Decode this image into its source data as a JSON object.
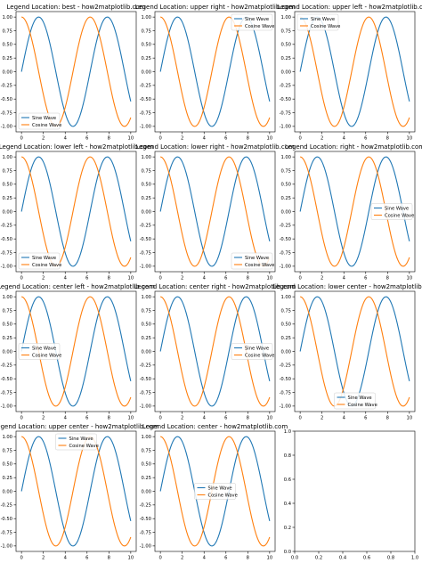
{
  "figure": {
    "background": "#ffffff"
  },
  "series_colors": {
    "Sine Wave": "#1f77b4",
    "Cosine Wave": "#ff7f0e"
  },
  "chart_data": [
    {
      "type": "line",
      "title": "Legend Location: best - how2matplotlib.com",
      "legend_loc": "lower left",
      "xlim": [
        -0.5,
        10.5
      ],
      "ylim": [
        -1.1,
        1.1
      ],
      "xticks": [
        0,
        2,
        4,
        6,
        8,
        10
      ],
      "yticks": [
        1.0,
        0.75,
        0.5,
        0.25,
        0.0,
        -0.25,
        -0.5,
        -0.75,
        -1.0
      ],
      "series": [
        {
          "name": "Sine Wave",
          "function": "sin",
          "color": "#1f77b4"
        },
        {
          "name": "Cosine Wave",
          "function": "cos",
          "color": "#ff7f0e"
        }
      ]
    },
    {
      "type": "line",
      "title": "Legend Location: upper right - how2matplotlib.com",
      "legend_loc": "upper right",
      "xlim": [
        -0.5,
        10.5
      ],
      "ylim": [
        -1.1,
        1.1
      ],
      "xticks": [
        0,
        2,
        4,
        6,
        8,
        10
      ],
      "yticks": [
        1.0,
        0.75,
        0.5,
        0.25,
        0.0,
        -0.25,
        -0.5,
        -0.75,
        -1.0
      ],
      "series": [
        {
          "name": "Sine Wave",
          "function": "sin",
          "color": "#1f77b4"
        },
        {
          "name": "Cosine Wave",
          "function": "cos",
          "color": "#ff7f0e"
        }
      ]
    },
    {
      "type": "line",
      "title": "Legend Location: upper left - how2matplotlib.com",
      "legend_loc": "upper left",
      "xlim": [
        -0.5,
        10.5
      ],
      "ylim": [
        -1.1,
        1.1
      ],
      "xticks": [
        0,
        2,
        4,
        6,
        8,
        10
      ],
      "yticks": [
        1.0,
        0.75,
        0.5,
        0.25,
        0.0,
        -0.25,
        -0.5,
        -0.75,
        -1.0
      ],
      "series": [
        {
          "name": "Sine Wave",
          "function": "sin",
          "color": "#1f77b4"
        },
        {
          "name": "Cosine Wave",
          "function": "cos",
          "color": "#ff7f0e"
        }
      ]
    },
    {
      "type": "line",
      "title": "Legend Location: lower left - how2matplotlib.com",
      "legend_loc": "lower left",
      "xlim": [
        -0.5,
        10.5
      ],
      "ylim": [
        -1.1,
        1.1
      ],
      "xticks": [
        0,
        2,
        4,
        6,
        8,
        10
      ],
      "yticks": [
        1.0,
        0.75,
        0.5,
        0.25,
        0.0,
        -0.25,
        -0.5,
        -0.75,
        -1.0
      ],
      "series": [
        {
          "name": "Sine Wave",
          "function": "sin",
          "color": "#1f77b4"
        },
        {
          "name": "Cosine Wave",
          "function": "cos",
          "color": "#ff7f0e"
        }
      ]
    },
    {
      "type": "line",
      "title": "Legend Location: lower right - how2matplotlib.com",
      "legend_loc": "lower right",
      "xlim": [
        -0.5,
        10.5
      ],
      "ylim": [
        -1.1,
        1.1
      ],
      "xticks": [
        0,
        2,
        4,
        6,
        8,
        10
      ],
      "yticks": [
        1.0,
        0.75,
        0.5,
        0.25,
        0.0,
        -0.25,
        -0.5,
        -0.75,
        -1.0
      ],
      "series": [
        {
          "name": "Sine Wave",
          "function": "sin",
          "color": "#1f77b4"
        },
        {
          "name": "Cosine Wave",
          "function": "cos",
          "color": "#ff7f0e"
        }
      ]
    },
    {
      "type": "line",
      "title": "Legend Location: right - how2matplotlib.com",
      "legend_loc": "right",
      "xlim": [
        -0.5,
        10.5
      ],
      "ylim": [
        -1.1,
        1.1
      ],
      "xticks": [
        0,
        2,
        4,
        6,
        8,
        10
      ],
      "yticks": [
        1.0,
        0.75,
        0.5,
        0.25,
        0.0,
        -0.25,
        -0.5,
        -0.75,
        -1.0
      ],
      "series": [
        {
          "name": "Sine Wave",
          "function": "sin",
          "color": "#1f77b4"
        },
        {
          "name": "Cosine Wave",
          "function": "cos",
          "color": "#ff7f0e"
        }
      ]
    },
    {
      "type": "line",
      "title": "Legend Location: center left - how2matplotlib.com",
      "legend_loc": "center left",
      "xlim": [
        -0.5,
        10.5
      ],
      "ylim": [
        -1.1,
        1.1
      ],
      "xticks": [
        0,
        2,
        4,
        6,
        8,
        10
      ],
      "yticks": [
        1.0,
        0.75,
        0.5,
        0.25,
        0.0,
        -0.25,
        -0.5,
        -0.75,
        -1.0
      ],
      "series": [
        {
          "name": "Sine Wave",
          "function": "sin",
          "color": "#1f77b4"
        },
        {
          "name": "Cosine Wave",
          "function": "cos",
          "color": "#ff7f0e"
        }
      ]
    },
    {
      "type": "line",
      "title": "Legend Location: center right - how2matplotlib.com",
      "legend_loc": "center right",
      "xlim": [
        -0.5,
        10.5
      ],
      "ylim": [
        -1.1,
        1.1
      ],
      "xticks": [
        0,
        2,
        4,
        6,
        8,
        10
      ],
      "yticks": [
        1.0,
        0.75,
        0.5,
        0.25,
        0.0,
        -0.25,
        -0.5,
        -0.75,
        -1.0
      ],
      "series": [
        {
          "name": "Sine Wave",
          "function": "sin",
          "color": "#1f77b4"
        },
        {
          "name": "Cosine Wave",
          "function": "cos",
          "color": "#ff7f0e"
        }
      ]
    },
    {
      "type": "line",
      "title": "Legend Location: lower center - how2matplotlib.com",
      "legend_loc": "lower center",
      "xlim": [
        -0.5,
        10.5
      ],
      "ylim": [
        -1.1,
        1.1
      ],
      "xticks": [
        0,
        2,
        4,
        6,
        8,
        10
      ],
      "yticks": [
        1.0,
        0.75,
        0.5,
        0.25,
        0.0,
        -0.25,
        -0.5,
        -0.75,
        -1.0
      ],
      "series": [
        {
          "name": "Sine Wave",
          "function": "sin",
          "color": "#1f77b4"
        },
        {
          "name": "Cosine Wave",
          "function": "cos",
          "color": "#ff7f0e"
        }
      ]
    },
    {
      "type": "line",
      "title": "Legend Location: upper center - how2matplotlib.com",
      "legend_loc": "upper center",
      "xlim": [
        -0.5,
        10.5
      ],
      "ylim": [
        -1.1,
        1.1
      ],
      "xticks": [
        0,
        2,
        4,
        6,
        8,
        10
      ],
      "yticks": [
        1.0,
        0.75,
        0.5,
        0.25,
        0.0,
        -0.25,
        -0.5,
        -0.75,
        -1.0
      ],
      "series": [
        {
          "name": "Sine Wave",
          "function": "sin",
          "color": "#1f77b4"
        },
        {
          "name": "Cosine Wave",
          "function": "cos",
          "color": "#ff7f0e"
        }
      ]
    },
    {
      "type": "line",
      "title": "Legend Location: center - how2matplotlib.com",
      "legend_loc": "center",
      "xlim": [
        -0.5,
        10.5
      ],
      "ylim": [
        -1.1,
        1.1
      ],
      "xticks": [
        0,
        2,
        4,
        6,
        8,
        10
      ],
      "yticks": [
        1.0,
        0.75,
        0.5,
        0.25,
        0.0,
        -0.25,
        -0.5,
        -0.75,
        -1.0
      ],
      "series": [
        {
          "name": "Sine Wave",
          "function": "sin",
          "color": "#1f77b4"
        },
        {
          "name": "Cosine Wave",
          "function": "cos",
          "color": "#ff7f0e"
        }
      ]
    },
    {
      "type": "line",
      "title": "",
      "empty": true,
      "xlim": [
        0.0,
        1.0
      ],
      "ylim": [
        0.0,
        1.0
      ],
      "xticks": [
        0.0,
        0.2,
        0.4,
        0.6,
        0.8,
        1.0
      ],
      "yticks": [
        0.0,
        0.2,
        0.4,
        0.6,
        0.8,
        1.0
      ],
      "series": []
    }
  ]
}
